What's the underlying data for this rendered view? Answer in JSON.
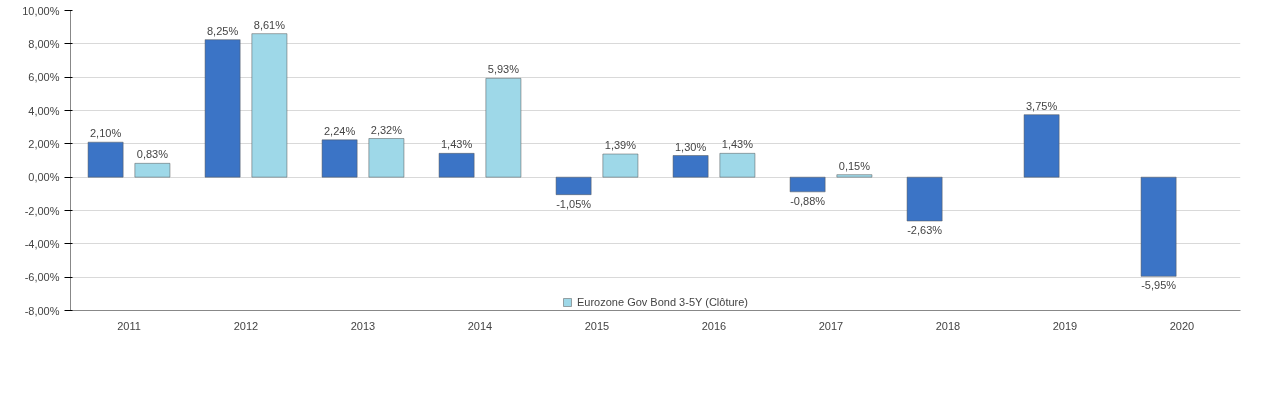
{
  "chart_data": {
    "type": "bar",
    "categories": [
      "2011",
      "2012",
      "2013",
      "2014",
      "2015",
      "2016",
      "2017",
      "2018",
      "2019",
      "2020"
    ],
    "series": [
      {
        "color": "#3b74c6",
        "values": [
          2.1,
          8.25,
          2.24,
          1.43,
          -1.05,
          1.3,
          -0.88,
          -2.63,
          3.75,
          -5.95
        ],
        "value_labels": [
          "2,10%",
          "8,25%",
          "2,24%",
          "1,43%",
          "-1,05%",
          "1,30%",
          "-0,88%",
          "-2,63%",
          "3,75%",
          "-5,95%"
        ]
      },
      {
        "name": "Eurozone Gov Bond 3-5Y (Clôture)",
        "color": "#9ed8e8",
        "values": [
          0.83,
          8.61,
          2.32,
          5.93,
          1.39,
          1.43,
          0.15,
          null,
          null,
          null
        ],
        "value_labels": [
          "0,83%",
          "8,61%",
          "2,32%",
          "5,93%",
          "1,39%",
          "1,43%",
          "0,15%",
          null,
          null,
          null
        ]
      }
    ],
    "ylim": [
      -8,
      10
    ],
    "yticks": [
      {
        "value": -8,
        "label": "-8,00%"
      },
      {
        "value": -6,
        "label": "-6,00%"
      },
      {
        "value": -4,
        "label": "-4,00%"
      },
      {
        "value": -2,
        "label": "-2,00%"
      },
      {
        "value": 0,
        "label": "0,00%"
      },
      {
        "value": 2,
        "label": "2,00%"
      },
      {
        "value": 4,
        "label": "4,00%"
      },
      {
        "value": 6,
        "label": "6,00%"
      },
      {
        "value": 8,
        "label": "8,00%"
      },
      {
        "value": 10,
        "label": "10,00%"
      }
    ],
    "grid": "y",
    "legend": "bottom"
  }
}
